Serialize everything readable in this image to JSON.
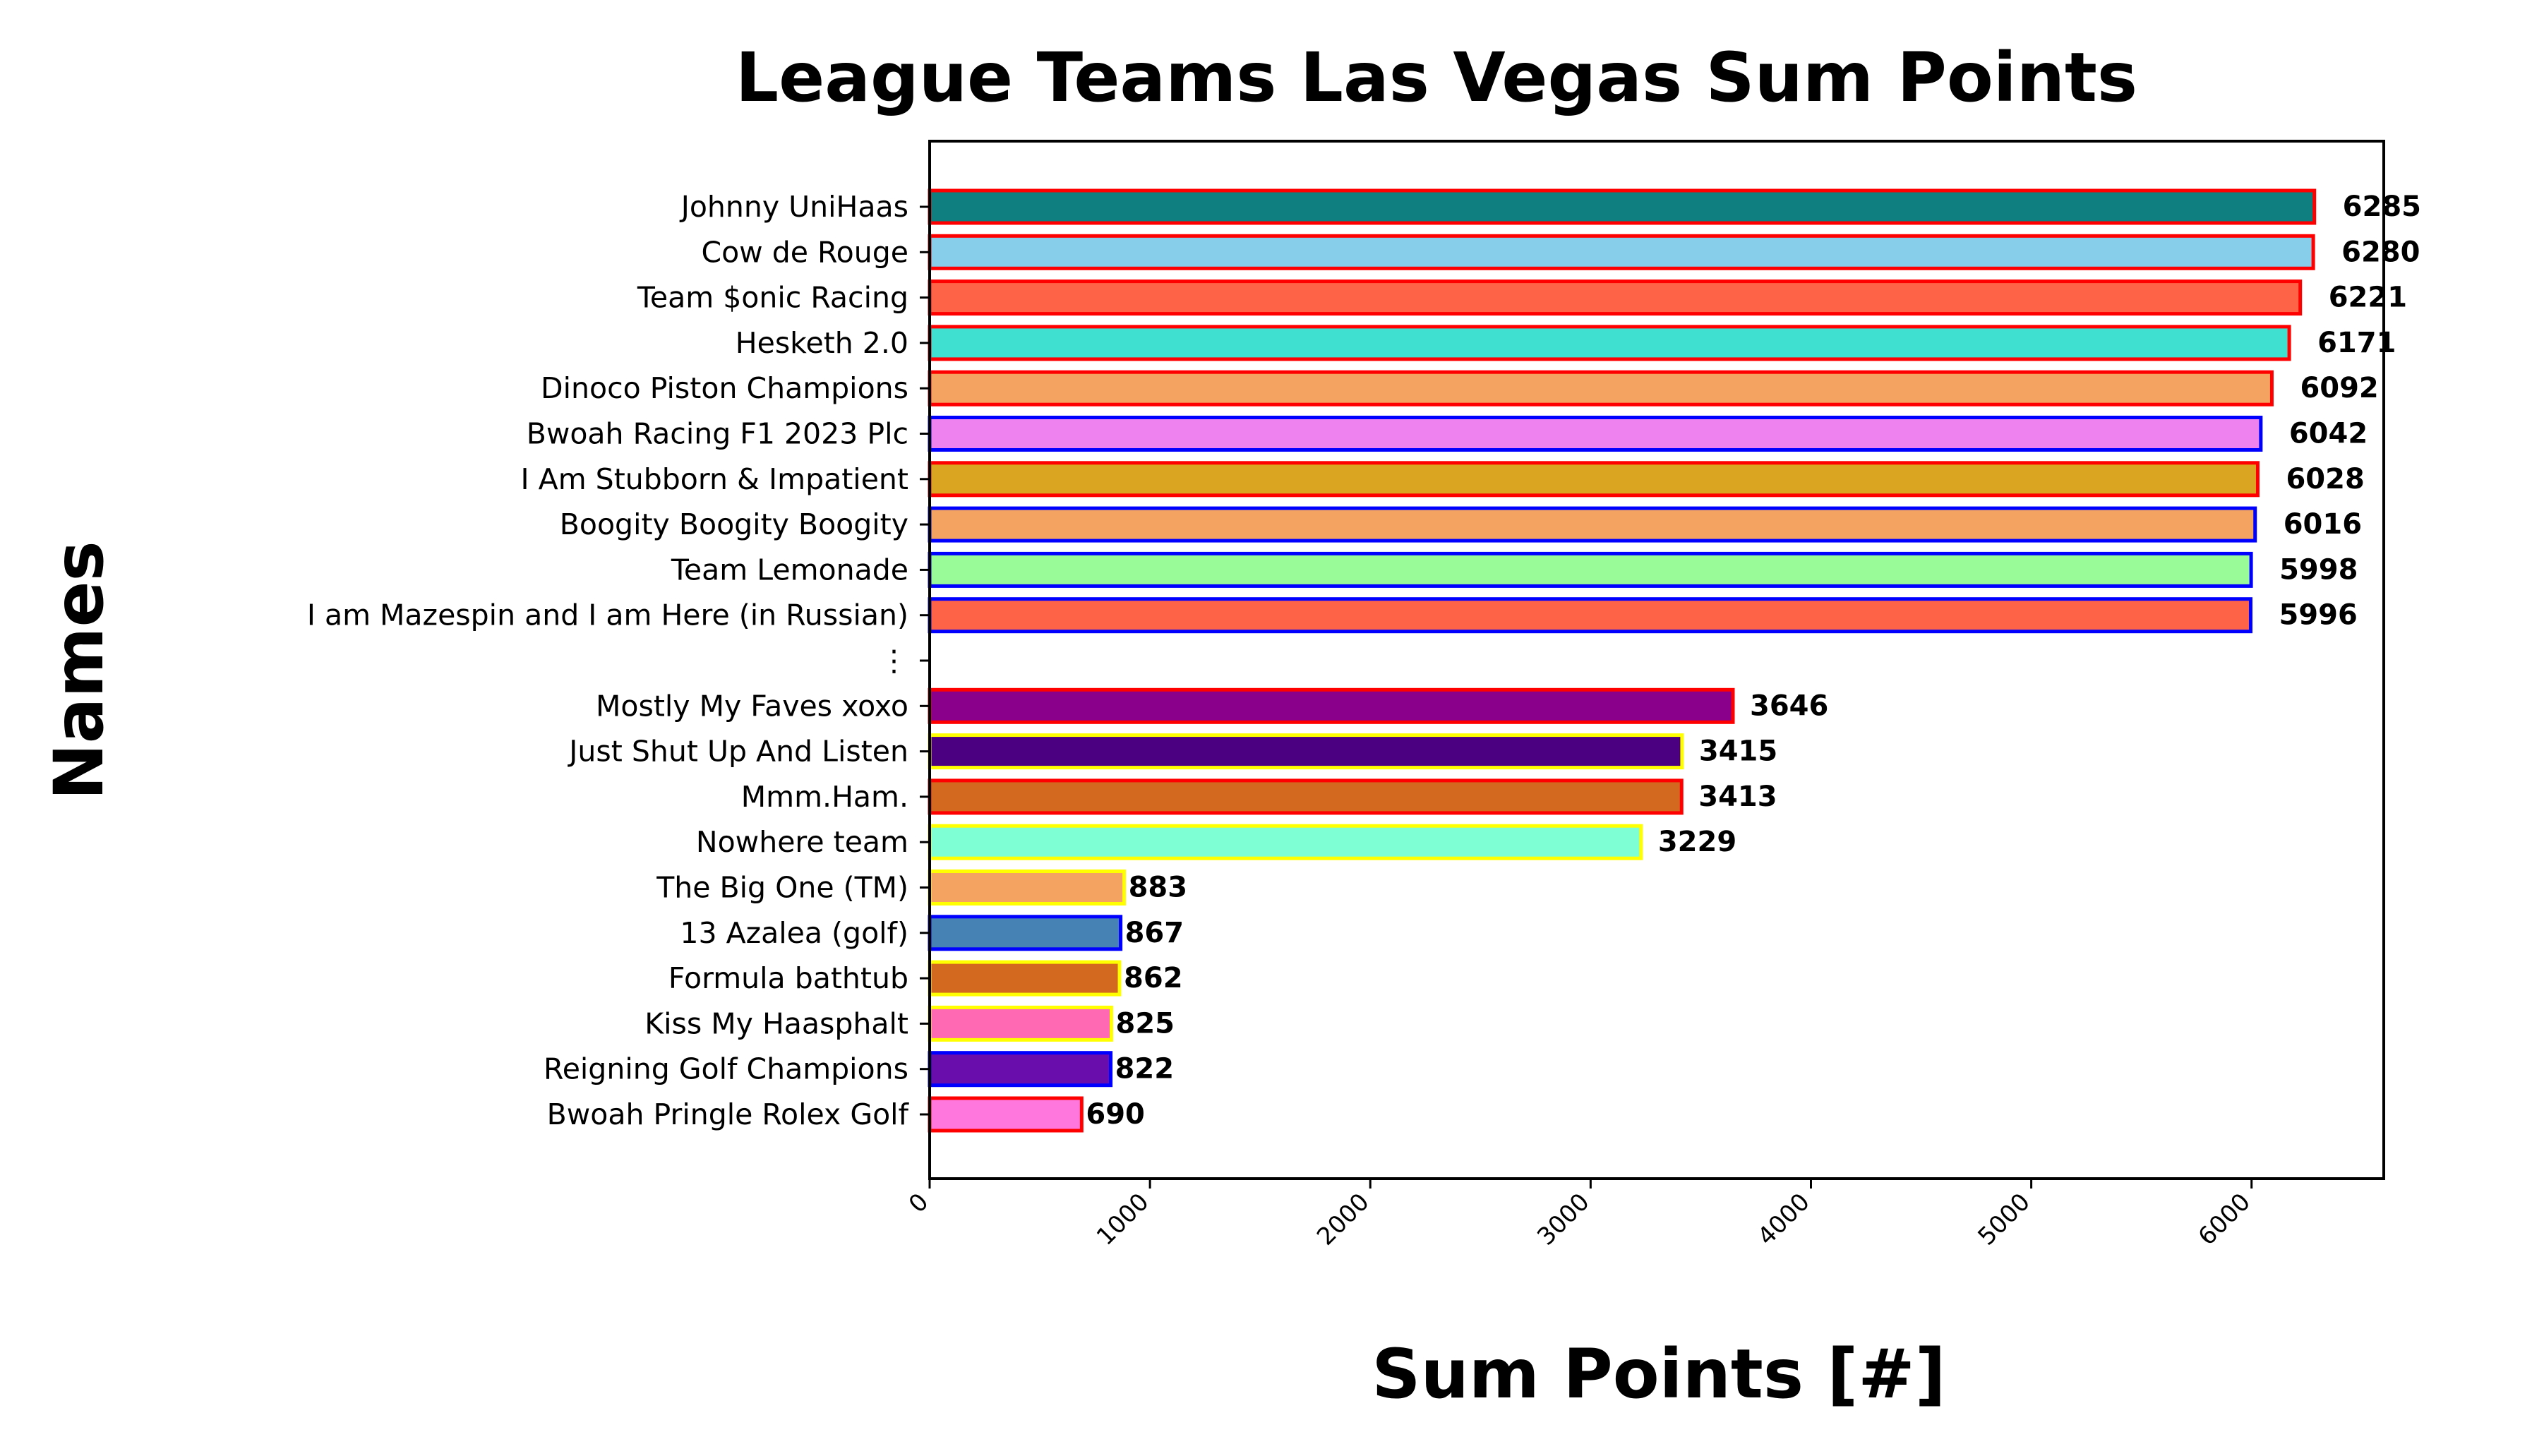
{
  "chart_data": {
    "type": "bar",
    "orientation": "horizontal",
    "title": "League Teams Las Vegas Sum Points",
    "xlabel": "Sum Points [#]",
    "ylabel": "Names",
    "xlim": [
      0,
      6600
    ],
    "xticks": [
      "0",
      "1000",
      "2000",
      "3000",
      "4000",
      "5000",
      "6000"
    ],
    "grid": false,
    "legend": "none",
    "categories": [
      "Johnny UniHaas",
      "Cow de Rouge",
      "Team $onic Racing",
      "Hesketh 2.0",
      "Dinoco Piston Champions",
      "Bwoah Racing F1 2023 Plc",
      "I Am Stubborn & Impatient",
      "Boogity Boogity Boogity",
      "Team Lemonade",
      "I am Mazespin and I am Here (in Russian)",
      "⋮",
      "Mostly My Faves xoxo",
      "Just Shut Up And Listen",
      "Mmm.Ham.",
      "Nowhere team",
      "The Big One (TM)",
      "13 Azalea (golf)",
      "Formula bathtub",
      "Kiss My Haasphalt",
      "Reigning Golf Champions",
      "Bwoah Pringle Rolex Golf"
    ],
    "values": [
      6285,
      6280,
      6221,
      6171,
      6092,
      6042,
      6028,
      6016,
      5998,
      5996,
      null,
      3646,
      3415,
      3413,
      3229,
      883,
      867,
      862,
      825,
      822,
      690
    ],
    "data_labels": [
      "6285",
      "6280",
      "6221",
      "6171",
      "6092",
      "6042",
      "6028",
      "6016",
      "5998",
      "5996",
      "",
      "3646",
      "3415",
      "3413",
      "3229",
      "883",
      "867",
      "862",
      "825",
      "822",
      "690"
    ],
    "fill_colors": [
      "#0f7f7f",
      "#87ceeb",
      "#ff6347",
      "#40e0d0",
      "#f4a460",
      "#ee82ee",
      "#daa520",
      "#f4a460",
      "#98fb98",
      "#ff6347",
      "",
      "#8b008b",
      "#4b0082",
      "#d2691e",
      "#7fffd4",
      "#f4a460",
      "#4682b4",
      "#d2691e",
      "#ff69b4",
      "#6a0dad",
      "#ff77dd"
    ],
    "edge_colors": [
      "#ff0000",
      "#ff0000",
      "#ff0000",
      "#ff0000",
      "#ff0000",
      "#0000ff",
      "#ff0000",
      "#0000ff",
      "#0000ff",
      "#0000ff",
      "",
      "#ff0000",
      "#ffff00",
      "#ff0000",
      "#ffff00",
      "#ffff00",
      "#0000ff",
      "#ffff00",
      "#ffff00",
      "#0000ff",
      "#ff0000"
    ]
  }
}
